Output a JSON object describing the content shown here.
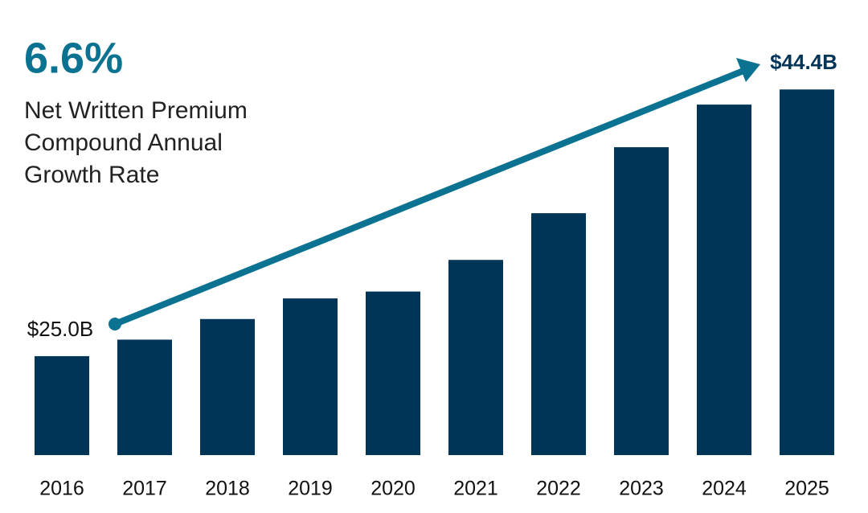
{
  "chart_data": {
    "type": "bar",
    "annotation": {
      "value": 6.6,
      "label": "6.6%",
      "lines": [
        "Net Written Premium",
        "Compound Annual",
        "Growth Rate"
      ]
    },
    "categories": [
      "2016",
      "2017",
      "2018",
      "2019",
      "2020",
      "2021",
      "2022",
      "2023",
      "2024",
      "2025"
    ],
    "values": [
      25.0,
      26.2,
      27.7,
      29.2,
      29.7,
      32.0,
      35.4,
      40.2,
      43.3,
      44.4
    ],
    "value_labels": [
      "$25.0B",
      null,
      null,
      null,
      null,
      null,
      null,
      null,
      null,
      "$44.4B"
    ],
    "color": "#003557",
    "ylim": [
      17.8,
      47.4
    ]
  }
}
